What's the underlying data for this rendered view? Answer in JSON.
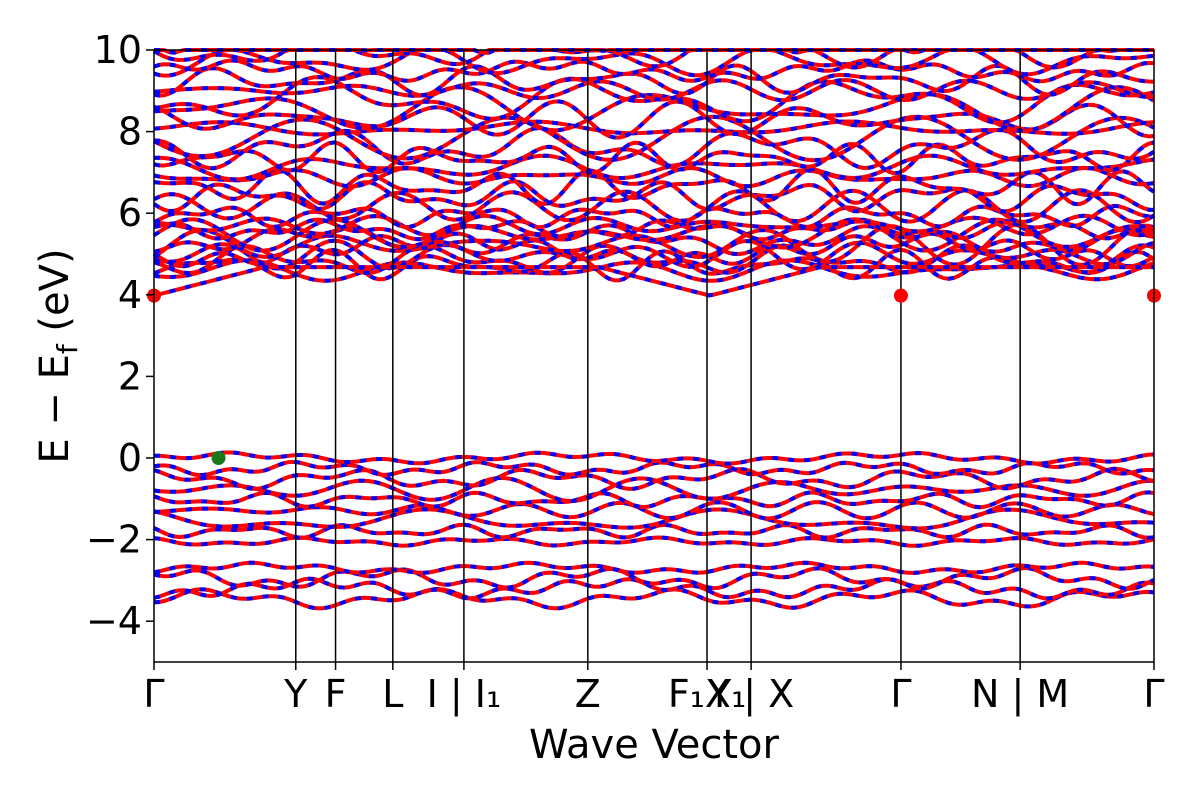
{
  "chart_data": {
    "type": "line",
    "title": "",
    "xlabel": "Wave Vector",
    "ylabel": "E − E_f (eV)",
    "ylabel_main": "E − E",
    "ylabel_sub": "f",
    "ylabel_tail": " (eV)",
    "ylim": [
      -5,
      10
    ],
    "yticks": [
      -4,
      -2,
      0,
      2,
      4,
      6,
      8,
      10
    ],
    "yticks_labels": [
      "−4",
      "−2",
      "0",
      "2",
      "4",
      "6",
      "8",
      "10"
    ],
    "xlim": [
      0,
      1
    ],
    "kpath": [
      {
        "label": "Γ",
        "x": 0.0
      },
      {
        "label": "Y",
        "x": 0.1055
      },
      {
        "label": "F",
        "x": 0.1351
      },
      {
        "label": "L",
        "x": 0.1777
      },
      {
        "label": "I | I₁",
        "x": 0.2306
      },
      {
        "label": "Z",
        "x": 0.3228
      },
      {
        "label": "F₁X₁",
        "x": 0.4115
      },
      {
        "label": "Y | X",
        "x": 0.4443
      },
      {
        "label": "Γ",
        "x": 0.5558
      },
      {
        "label": "N | M",
        "x": 0.6445
      },
      {
        "label": "Γ",
        "x": 0.7441
      }
    ],
    "band_gap": {
      "vbm": {
        "x": 0.048,
        "y": 0.0
      },
      "cbm": [
        {
          "x": 0.0,
          "y": 3.98
        },
        {
          "x": 0.5558,
          "y": 3.98
        },
        {
          "x": 0.7441,
          "y": 3.98
        }
      ]
    },
    "series": [
      {
        "name": "",
        "color": "#ff0000"
      },
      {
        "name": "",
        "color": "#0000ff"
      }
    ]
  }
}
